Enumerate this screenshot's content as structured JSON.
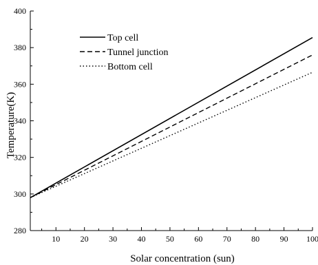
{
  "chart_data": {
    "type": "line",
    "xlabel": "Solar concentration (sun)",
    "ylabel": "Temperature(K)",
    "xlim": [
      1,
      100
    ],
    "ylim": [
      280,
      400
    ],
    "x_ticks": [
      10,
      20,
      30,
      40,
      50,
      60,
      70,
      80,
      90,
      100
    ],
    "y_ticks": [
      280,
      300,
      320,
      340,
      360,
      380,
      400
    ],
    "grid": false,
    "legend_position": "top-left",
    "series": [
      {
        "name": "Top cell",
        "style": "solid",
        "x": [
          1,
          100
        ],
        "y": [
          298,
          385.5
        ]
      },
      {
        "name": "Tunnel junction",
        "style": "dashed",
        "x": [
          1,
          100
        ],
        "y": [
          298,
          376
        ]
      },
      {
        "name": "Bottom cell",
        "style": "dotted",
        "x": [
          1,
          100
        ],
        "y": [
          298,
          366.5
        ]
      }
    ]
  }
}
